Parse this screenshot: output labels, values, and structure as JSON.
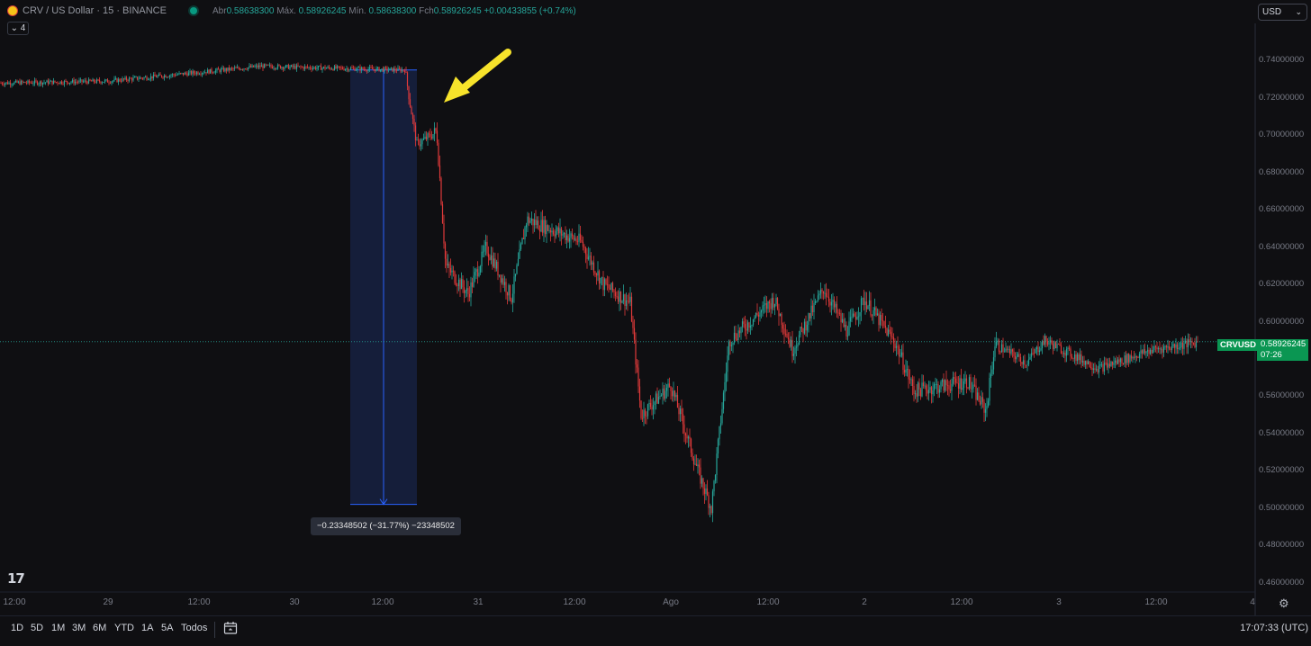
{
  "header": {
    "symbol": "CRV / US Dollar · 15 · BINANCE",
    "ohlc": [
      {
        "label": "Abr",
        "value": "0.58638300"
      },
      {
        "label": "Máx.",
        "value": "0.58926245"
      },
      {
        "label": "Mín.",
        "value": "0.58638300"
      },
      {
        "label": "Fch",
        "value": "0.58926245"
      }
    ],
    "change": "+0.00433855 (+0.74%)",
    "collapse_count": "4",
    "currency_selector": "USD"
  },
  "price_scale": {
    "labels": [
      "0.74000000",
      "0.72000000",
      "0.70000000",
      "0.68000000",
      "0.66000000",
      "0.64000000",
      "0.62000000",
      "0.60000000",
      "0.58000000",
      "0.56000000",
      "0.54000000",
      "0.52000000",
      "0.50000000",
      "0.48000000",
      "0.46000000"
    ],
    "current_symbol": "CRVUSD",
    "current_price": "0.58926245",
    "countdown": "07:26"
  },
  "time_axis": [
    "12:00",
    "29",
    "12:00",
    "30",
    "12:00",
    "31",
    "12:00",
    "Ago",
    "12:00",
    "2",
    "12:00",
    "3",
    "12:00",
    "4"
  ],
  "measurement": {
    "label": "−0.23348502 (−31.77%) −23348502",
    "from_price": 0.735,
    "to_price": 0.502
  },
  "bottom_bar": {
    "ranges": [
      "1D",
      "5D",
      "1M",
      "3M",
      "6M",
      "YTD",
      "1A",
      "5A",
      "Todos"
    ],
    "clock": "17:07:33 (UTC)"
  },
  "icons": [
    "crv-logo-icon",
    "live-dot-icon",
    "chevron-down-icon",
    "tradingview-logo-icon",
    "gear-icon",
    "calendar-goto-icon",
    "arrow-annotation-icon"
  ],
  "colors": {
    "up": "#26a69a",
    "down": "#e03a3a",
    "background": "#0f0f12",
    "measure_fill": "#16203d",
    "measure_line": "#2962ff",
    "annotation_arrow": "#f7e32b",
    "price_tag": "#0a9652"
  },
  "chart_data": {
    "type": "candlestick",
    "interval": "15",
    "ylim": [
      0.455,
      0.76
    ],
    "key_points": [
      {
        "t": 0,
        "price": 0.728
      },
      {
        "t": 120,
        "price": 0.729
      },
      {
        "t": 290,
        "price": 0.737
      },
      {
        "t": 450,
        "price": 0.735
      },
      {
        "t": 455,
        "price": 0.718
      },
      {
        "t": 463,
        "price": 0.695
      },
      {
        "t": 485,
        "price": 0.702
      },
      {
        "t": 495,
        "price": 0.63
      },
      {
        "t": 520,
        "price": 0.615
      },
      {
        "t": 540,
        "price": 0.64
      },
      {
        "t": 568,
        "price": 0.613
      },
      {
        "t": 585,
        "price": 0.655
      },
      {
        "t": 645,
        "price": 0.643
      },
      {
        "t": 670,
        "price": 0.62
      },
      {
        "t": 700,
        "price": 0.61
      },
      {
        "t": 712,
        "price": 0.55
      },
      {
        "t": 745,
        "price": 0.566
      },
      {
        "t": 775,
        "price": 0.52
      },
      {
        "t": 790,
        "price": 0.5
      },
      {
        "t": 810,
        "price": 0.59
      },
      {
        "t": 860,
        "price": 0.612
      },
      {
        "t": 880,
        "price": 0.585
      },
      {
        "t": 915,
        "price": 0.618
      },
      {
        "t": 940,
        "price": 0.595
      },
      {
        "t": 960,
        "price": 0.612
      },
      {
        "t": 995,
        "price": 0.588
      },
      {
        "t": 1015,
        "price": 0.563
      },
      {
        "t": 1075,
        "price": 0.568
      },
      {
        "t": 1095,
        "price": 0.552
      },
      {
        "t": 1105,
        "price": 0.588
      },
      {
        "t": 1140,
        "price": 0.578
      },
      {
        "t": 1160,
        "price": 0.59
      },
      {
        "t": 1220,
        "price": 0.575
      },
      {
        "t": 1280,
        "price": 0.585
      },
      {
        "t": 1330,
        "price": 0.589
      }
    ]
  }
}
